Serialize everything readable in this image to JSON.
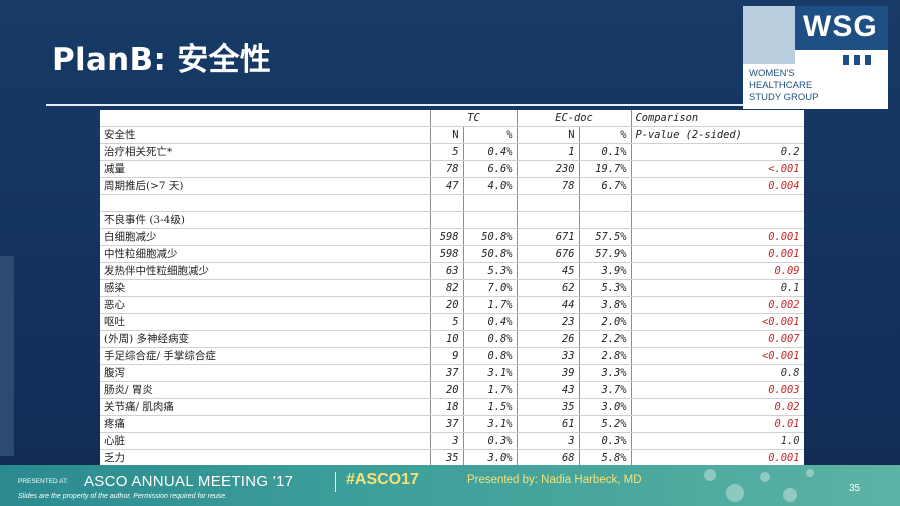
{
  "slide": {
    "title": "PlanB: 安全性",
    "page_number": "35"
  },
  "logo": {
    "mark": "WSG",
    "line1": "WOMEN'S",
    "line2": "HEALTHCARE",
    "line3": "STUDY GROUP"
  },
  "footer": {
    "presented_at": "PRESENTED AT:",
    "meeting": "ASCO ANNUAL MEETING '17",
    "hashtag": "#ASCO17",
    "presenter": "Presented by: Nadia Harbeck, MD",
    "disclaimer": "Slides are the property of the author. Permission required for reuse."
  },
  "table": {
    "group_headers": [
      "TC",
      "EC-doc",
      "Comparison"
    ],
    "row_label_header": "安全性",
    "sub_headers": [
      "N",
      "%",
      "N",
      "%",
      "P-value (2-sided)"
    ],
    "rows": [
      {
        "label": "治疗相关死亡*",
        "tc_n": "5",
        "tc_pct": "0.4%",
        "ec_n": "1",
        "ec_pct": "0.1%",
        "p": "0.2",
        "p_red": false
      },
      {
        "label": "减量",
        "tc_n": "78",
        "tc_pct": "6.6%",
        "ec_n": "230",
        "ec_pct": "19.7%",
        "p": "<.001",
        "p_red": true
      },
      {
        "label": "周期推后(>7 天)",
        "tc_n": "47",
        "tc_pct": "4.0%",
        "ec_n": "78",
        "ec_pct": "6.7%",
        "p": "0.004",
        "p_red": true
      },
      {
        "label": "",
        "tc_n": "",
        "tc_pct": "",
        "ec_n": "",
        "ec_pct": "",
        "p": "",
        "p_red": false
      },
      {
        "label": "不良事件 (3-4级)",
        "tc_n": "",
        "tc_pct": "",
        "ec_n": "",
        "ec_pct": "",
        "p": "",
        "p_red": false
      },
      {
        "label": "白细胞减少",
        "tc_n": "598",
        "tc_pct": "50.8%",
        "ec_n": "671",
        "ec_pct": "57.5%",
        "p": "0.001",
        "p_red": true
      },
      {
        "label": "中性粒细胞减少",
        "tc_n": "598",
        "tc_pct": "50.8%",
        "ec_n": "676",
        "ec_pct": "57.9%",
        "p": "0.001",
        "p_red": true
      },
      {
        "label": "发热伴中性粒细胞减少",
        "tc_n": "63",
        "tc_pct": "5.3%",
        "ec_n": "45",
        "ec_pct": "3.9%",
        "p": "0.09",
        "p_red": true
      },
      {
        "label": "感染",
        "tc_n": "82",
        "tc_pct": "7.0%",
        "ec_n": "62",
        "ec_pct": "5.3%",
        "p": "0.1",
        "p_red": false
      },
      {
        "label": "恶心",
        "tc_n": "20",
        "tc_pct": "1.7%",
        "ec_n": "44",
        "ec_pct": "3.8%",
        "p": "0.002",
        "p_red": true
      },
      {
        "label": "呕吐",
        "tc_n": "5",
        "tc_pct": "0.4%",
        "ec_n": "23",
        "ec_pct": "2.0%",
        "p": "<0.001",
        "p_red": true
      },
      {
        "label": "(外周) 多神经病变",
        "tc_n": "10",
        "tc_pct": "0.8%",
        "ec_n": "26",
        "ec_pct": "2.2%",
        "p": "0.007",
        "p_red": true
      },
      {
        "label": "手足综合症/ 手掌综合症",
        "tc_n": "9",
        "tc_pct": "0.8%",
        "ec_n": "33",
        "ec_pct": "2.8%",
        "p": "<0.001",
        "p_red": true
      },
      {
        "label": "腹泻",
        "tc_n": "37",
        "tc_pct": "3.1%",
        "ec_n": "39",
        "ec_pct": "3.3%",
        "p": "0.8",
        "p_red": false
      },
      {
        "label": "肠炎/ 胃炎",
        "tc_n": "20",
        "tc_pct": "1.7%",
        "ec_n": "43",
        "ec_pct": "3.7%",
        "p": "0.003",
        "p_red": true
      },
      {
        "label": "关节痛/ 肌肉痛",
        "tc_n": "18",
        "tc_pct": "1.5%",
        "ec_n": "35",
        "ec_pct": "3.0%",
        "p": "0.02",
        "p_red": true
      },
      {
        "label": "疼痛",
        "tc_n": "37",
        "tc_pct": "3.1%",
        "ec_n": "61",
        "ec_pct": "5.2%",
        "p": "0.01",
        "p_red": true
      },
      {
        "label": "心脏",
        "tc_n": "3",
        "tc_pct": "0.3%",
        "ec_n": "3",
        "ec_pct": "0.3%",
        "p": "1.0",
        "p_red": false
      },
      {
        "label": "乏力",
        "tc_n": "35",
        "tc_pct": "3.0%",
        "ec_n": "68",
        "ec_pct": "5.8%",
        "p": "0.001",
        "p_red": true
      }
    ]
  },
  "colors": {
    "background": "#143260",
    "significant_p": "#c62828",
    "footer": "#3d9f9a",
    "hashtag": "#f6e27a"
  }
}
